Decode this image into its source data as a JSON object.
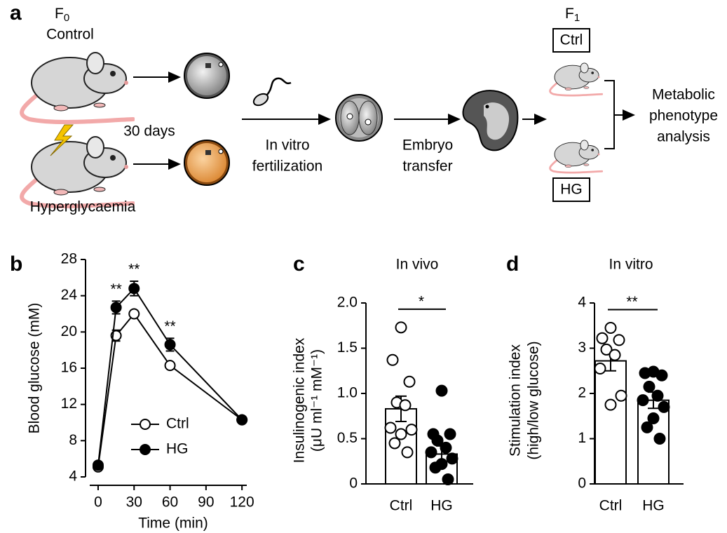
{
  "diagram": {
    "panel": "a",
    "f0": {
      "base": "F",
      "sub": "0"
    },
    "control": "Control",
    "hyperglycaemia": "Hyperglycaemia",
    "duration": "30 days",
    "ivf": [
      "In vitro",
      "fertilization"
    ],
    "transfer": [
      "Embryo",
      "transfer"
    ],
    "f1": {
      "base": "F",
      "sub": "1"
    },
    "f1_groups": [
      "Ctrl",
      "HG"
    ],
    "outcome": [
      "Metabolic",
      "phenotype",
      "analysis"
    ]
  },
  "chart_data": [
    {
      "panel": "b",
      "type": "line",
      "x_label": "Time (min)",
      "y_label": "Blood glucose (mM)",
      "x": [
        0,
        15,
        30,
        60,
        120
      ],
      "series": [
        {
          "name": "Ctrl",
          "color": "#000000",
          "marker_fill": "#ffffff",
          "values": [
            5.1,
            19.6,
            22.0,
            16.3,
            10.3
          ],
          "errors": [
            0.2,
            0.6,
            0.3,
            0.3,
            0.3
          ]
        },
        {
          "name": "HG",
          "color": "#000000",
          "marker_fill": "#000000",
          "values": [
            5.3,
            22.7,
            24.8,
            18.6,
            10.3
          ],
          "errors": [
            0.2,
            0.7,
            0.8,
            0.7,
            0.3
          ]
        }
      ],
      "annotations": [
        {
          "x": 15,
          "text": "**"
        },
        {
          "x": 30,
          "text": "**"
        },
        {
          "x": 60,
          "text": "**"
        }
      ],
      "xlim": [
        -7,
        124
      ],
      "xticks": [
        0,
        30,
        60,
        90,
        120
      ],
      "ylim": [
        4,
        28
      ],
      "yticks": [
        4,
        8,
        12,
        16,
        20,
        24,
        28
      ],
      "legend": "lower center"
    },
    {
      "panel": "c",
      "type": "bar",
      "title": "In vivo",
      "y_label": [
        "Insulinogenic index",
        "(μU ml⁻¹ mM⁻¹)"
      ],
      "categories": [
        "Ctrl",
        "HG"
      ],
      "values": [
        0.83,
        0.33
      ],
      "errors": [
        0.14,
        0.09
      ],
      "color": "#ffffff",
      "edgecolor": "#000000",
      "points": [
        [
          1.73,
          1.37,
          1.13,
          0.9,
          0.87,
          0.62,
          0.6,
          0.55,
          0.45,
          0.35
        ],
        [
          1.03,
          0.55,
          0.55,
          0.48,
          0.4,
          0.35,
          0.28,
          0.22,
          0.18,
          0.05
        ]
      ],
      "point_fill": [
        "#ffffff",
        "#000000"
      ],
      "significance": "*",
      "ylim": [
        0,
        2
      ],
      "yticks": [
        0,
        0.5,
        {
          "value": 1,
          "label": "1.0"
        },
        1.5,
        {
          "value": 2,
          "label": "2.0"
        }
      ]
    },
    {
      "panel": "d",
      "type": "bar",
      "title": "In vitro",
      "y_label": [
        "Stimulation index",
        "(high/low glucose)"
      ],
      "categories": [
        "Ctrl",
        "HG"
      ],
      "values": [
        2.72,
        1.85
      ],
      "errors": [
        0.22,
        0.18
      ],
      "color": "#ffffff",
      "edgecolor": "#000000",
      "points": [
        [
          3.45,
          3.22,
          3.18,
          2.97,
          2.85,
          2.55,
          1.95,
          1.75
        ],
        [
          2.48,
          2.45,
          2.4,
          2.15,
          1.95,
          1.85,
          1.7,
          1.45,
          1.25,
          1.0
        ]
      ],
      "point_fill": [
        "#ffffff",
        "#000000"
      ],
      "significance": "**",
      "ylim": [
        0,
        4
      ],
      "yticks": [
        0,
        1,
        2,
        3,
        4
      ]
    }
  ]
}
